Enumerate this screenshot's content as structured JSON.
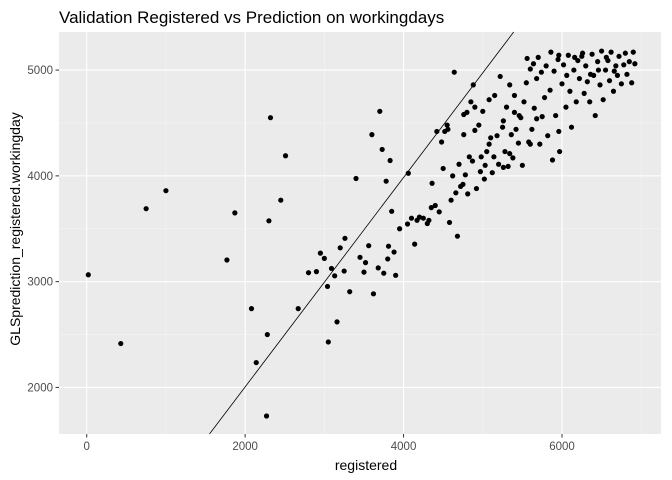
{
  "chart_data": {
    "type": "scatter",
    "title": "Validation Registered vs Prediction on workingdays",
    "xlabel": "registered",
    "ylabel": "GLSprediction_registered.workingday",
    "xlim": [
      -350,
      7250
    ],
    "ylim": [
      1560,
      5360
    ],
    "x_ticks": [
      0,
      2000,
      4000,
      6000
    ],
    "x_tick_labels": [
      "0",
      "2000",
      "4000",
      "6000"
    ],
    "y_ticks": [
      2000,
      3000,
      4000,
      5000
    ],
    "y_tick_labels": [
      "2000",
      "3000",
      "4000",
      "5000"
    ],
    "grid": true,
    "legend": "none",
    "colors": {
      "panel": "#ebebeb",
      "grid_major": "#ffffff",
      "points": "#000000",
      "line": "#000000"
    },
    "reference_line": {
      "x": [
        1550,
        5390
      ],
      "y": [
        1560,
        5360
      ]
    },
    "points": [
      [
        20,
        3065
      ],
      [
        430,
        2415
      ],
      [
        750,
        3690
      ],
      [
        1000,
        3860
      ],
      [
        1770,
        3205
      ],
      [
        1870,
        3650
      ],
      [
        2080,
        2745
      ],
      [
        2140,
        2235
      ],
      [
        2270,
        1730
      ],
      [
        2280,
        2500
      ],
      [
        2300,
        3575
      ],
      [
        2320,
        4550
      ],
      [
        2450,
        3770
      ],
      [
        2510,
        4190
      ],
      [
        2670,
        2745
      ],
      [
        2800,
        3085
      ],
      [
        2900,
        3095
      ],
      [
        2950,
        3270
      ],
      [
        3000,
        3220
      ],
      [
        3040,
        2955
      ],
      [
        3050,
        2430
      ],
      [
        3090,
        3125
      ],
      [
        3130,
        3055
      ],
      [
        3160,
        2620
      ],
      [
        3200,
        3320
      ],
      [
        3250,
        3100
      ],
      [
        3260,
        3410
      ],
      [
        3320,
        2905
      ],
      [
        3400,
        3975
      ],
      [
        3450,
        3230
      ],
      [
        3500,
        3090
      ],
      [
        3520,
        3180
      ],
      [
        3560,
        3340
      ],
      [
        3600,
        4390
      ],
      [
        3620,
        2885
      ],
      [
        3680,
        3130
      ],
      [
        3700,
        4610
      ],
      [
        3730,
        4250
      ],
      [
        3750,
        3080
      ],
      [
        3780,
        3950
      ],
      [
        3800,
        3215
      ],
      [
        3810,
        3335
      ],
      [
        3830,
        4145
      ],
      [
        3850,
        3665
      ],
      [
        3880,
        3280
      ],
      [
        3900,
        3060
      ],
      [
        3950,
        3500
      ],
      [
        4050,
        3545
      ],
      [
        4060,
        4025
      ],
      [
        4100,
        3600
      ],
      [
        4140,
        3355
      ],
      [
        4170,
        3580
      ],
      [
        4200,
        3610
      ],
      [
        4250,
        3600
      ],
      [
        4300,
        3550
      ],
      [
        4320,
        3580
      ],
      [
        4350,
        3700
      ],
      [
        4360,
        3930
      ],
      [
        4400,
        3720
      ],
      [
        4420,
        4420
      ],
      [
        4450,
        3660
      ],
      [
        4480,
        4320
      ],
      [
        4500,
        4070
      ],
      [
        4520,
        4420
      ],
      [
        4550,
        4480
      ],
      [
        4580,
        3560
      ],
      [
        4600,
        3770
      ],
      [
        4620,
        4000
      ],
      [
        4640,
        4980
      ],
      [
        4660,
        3840
      ],
      [
        4680,
        3430
      ],
      [
        4700,
        4110
      ],
      [
        4720,
        3900
      ],
      [
        4750,
        3920
      ],
      [
        4760,
        4390
      ],
      [
        4780,
        4010
      ],
      [
        4800,
        4600
      ],
      [
        4810,
        3830
      ],
      [
        4830,
        4180
      ],
      [
        4850,
        4700
      ],
      [
        4870,
        4140
      ],
      [
        4880,
        4860
      ],
      [
        4900,
        4430
      ],
      [
        4920,
        3880
      ],
      [
        4950,
        4480
      ],
      [
        4970,
        4040
      ],
      [
        4980,
        4180
      ],
      [
        5000,
        4610
      ],
      [
        5020,
        3970
      ],
      [
        5030,
        4100
      ],
      [
        5050,
        4230
      ],
      [
        5080,
        4300
      ],
      [
        5100,
        4360
      ],
      [
        5120,
        4030
      ],
      [
        5150,
        4760
      ],
      [
        5180,
        4380
      ],
      [
        5200,
        4110
      ],
      [
        5220,
        4940
      ],
      [
        5250,
        4460
      ],
      [
        5260,
        4080
      ],
      [
        5280,
        4230
      ],
      [
        5300,
        4650
      ],
      [
        5320,
        4090
      ],
      [
        5340,
        4860
      ],
      [
        5360,
        4390
      ],
      [
        5380,
        4170
      ],
      [
        5400,
        4760
      ],
      [
        5420,
        4440
      ],
      [
        5450,
        4310
      ],
      [
        5480,
        4550
      ],
      [
        5500,
        4100
      ],
      [
        5520,
        4700
      ],
      [
        5550,
        4880
      ],
      [
        5580,
        4320
      ],
      [
        5600,
        5010
      ],
      [
        5620,
        4440
      ],
      [
        5650,
        4640
      ],
      [
        5680,
        4920
      ],
      [
        5700,
        5120
      ],
      [
        5720,
        4300
      ],
      [
        5750,
        4560
      ],
      [
        5780,
        4740
      ],
      [
        5800,
        5040
      ],
      [
        5820,
        4380
      ],
      [
        5850,
        4810
      ],
      [
        5880,
        4150
      ],
      [
        5900,
        4990
      ],
      [
        5920,
        4570
      ],
      [
        5950,
        5100
      ],
      [
        5970,
        4230
      ],
      [
        6000,
        4870
      ],
      [
        6020,
        5050
      ],
      [
        6050,
        4650
      ],
      [
        6080,
        5140
      ],
      [
        6100,
        4800
      ],
      [
        6120,
        4460
      ],
      [
        6150,
        5000
      ],
      [
        6180,
        4700
      ],
      [
        6200,
        5090
      ],
      [
        6220,
        4920
      ],
      [
        6250,
        5130
      ],
      [
        6280,
        4780
      ],
      [
        6300,
        5040
      ],
      [
        6320,
        4890
      ],
      [
        6350,
        4700
      ],
      [
        6380,
        5150
      ],
      [
        6400,
        4950
      ],
      [
        6420,
        4570
      ],
      [
        6450,
        5080
      ],
      [
        6480,
        4860
      ],
      [
        6500,
        5180
      ],
      [
        6520,
        4720
      ],
      [
        6550,
        5000
      ],
      [
        6580,
        5090
      ],
      [
        6600,
        4900
      ],
      [
        6620,
        5170
      ],
      [
        6650,
        4800
      ],
      [
        6680,
        5040
      ],
      [
        6700,
        4950
      ],
      [
        6720,
        5130
      ],
      [
        6750,
        4870
      ],
      [
        6780,
        5050
      ],
      [
        6800,
        5160
      ],
      [
        6820,
        4960
      ],
      [
        6850,
        5080
      ],
      [
        6880,
        4880
      ],
      [
        6900,
        5170
      ],
      [
        6920,
        5060
      ],
      [
        5560,
        5110
      ],
      [
        5640,
        5060
      ],
      [
        5740,
        4980
      ],
      [
        5860,
        5170
      ],
      [
        5960,
        5140
      ],
      [
        6060,
        4950
      ],
      [
        6160,
        5120
      ],
      [
        6260,
        5160
      ],
      [
        6360,
        4960
      ],
      [
        6460,
        5000
      ],
      [
        6560,
        5120
      ],
      [
        6660,
        4990
      ],
      [
        5960,
        4420
      ],
      [
        5680,
        4540
      ],
      [
        5460,
        4570
      ],
      [
        5260,
        4520
      ],
      [
        5080,
        4720
      ],
      [
        4900,
        4650
      ],
      [
        4760,
        4580
      ],
      [
        4560,
        4440
      ],
      [
        5140,
        4180
      ],
      [
        5340,
        4210
      ],
      [
        5600,
        4300
      ],
      [
        5400,
        4600
      ]
    ]
  }
}
